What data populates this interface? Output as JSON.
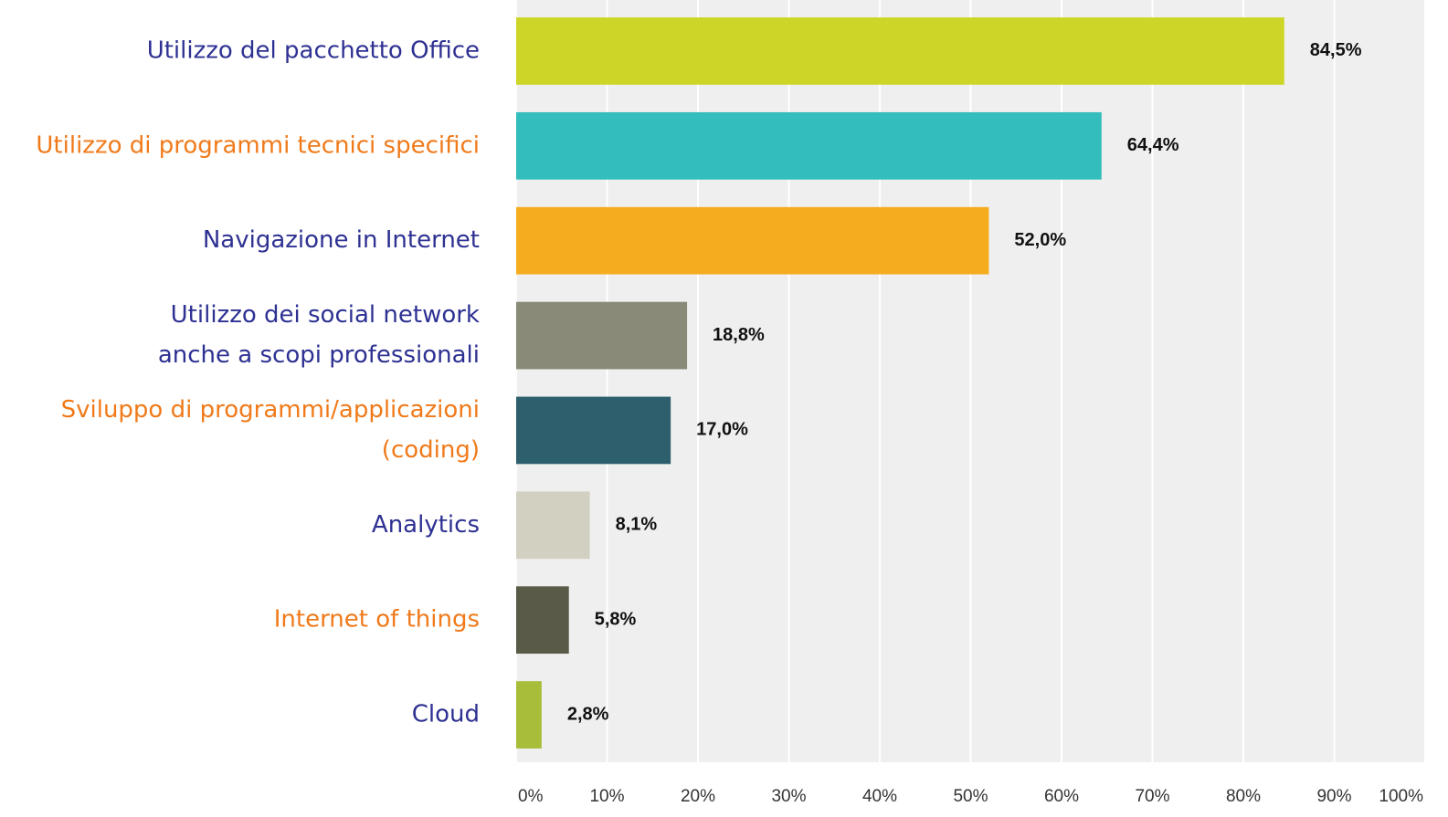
{
  "chart_data": {
    "type": "barh",
    "categories": [
      [
        "Utilizzo del pacchetto Office"
      ],
      [
        "Utilizzo di programmi tecnici specifici"
      ],
      [
        "Navigazione in Internet"
      ],
      [
        "Utilizzo dei social network",
        "anche a scopi professionali"
      ],
      [
        "Sviluppo di programmi/applicazioni",
        "(coding)"
      ],
      [
        "Analytics"
      ],
      [
        "Internet of things"
      ],
      [
        "Cloud"
      ]
    ],
    "label_colors": [
      "#2e3192",
      "#f07a1a",
      "#2e3192",
      "#2e3192",
      "#f07a1a",
      "#2e3192",
      "#f07a1a",
      "#2e3192"
    ],
    "values": [
      84.5,
      64.4,
      52.0,
      18.8,
      17.0,
      8.1,
      5.8,
      2.8
    ],
    "value_labels": [
      "84,5%",
      "64,4%",
      "52,0%",
      "18,8%",
      "17,0%",
      "8,1%",
      "5,8%",
      "2,8%"
    ],
    "colors": [
      "#cdd626",
      "#33bdbd",
      "#f5ad1f",
      "#8a8a78",
      "#2e5f6c",
      "#d2d0c1",
      "#5a5a48",
      "#a8bd3a"
    ],
    "xlim": [
      0,
      100
    ],
    "xticks": [
      {
        "value": 0,
        "label": "0%"
      },
      {
        "value": 10,
        "label": "10%"
      },
      {
        "value": 20,
        "label": "20%"
      },
      {
        "value": 30,
        "label": "30%"
      },
      {
        "value": 40,
        "label": "40%"
      },
      {
        "value": 50,
        "label": "50%"
      },
      {
        "value": 60,
        "label": "60%"
      },
      {
        "value": 70,
        "label": "70%"
      },
      {
        "value": 80,
        "label": "80%"
      },
      {
        "value": 90,
        "label": "90%"
      },
      {
        "value": 100,
        "label": "100%"
      }
    ],
    "grid": true
  }
}
